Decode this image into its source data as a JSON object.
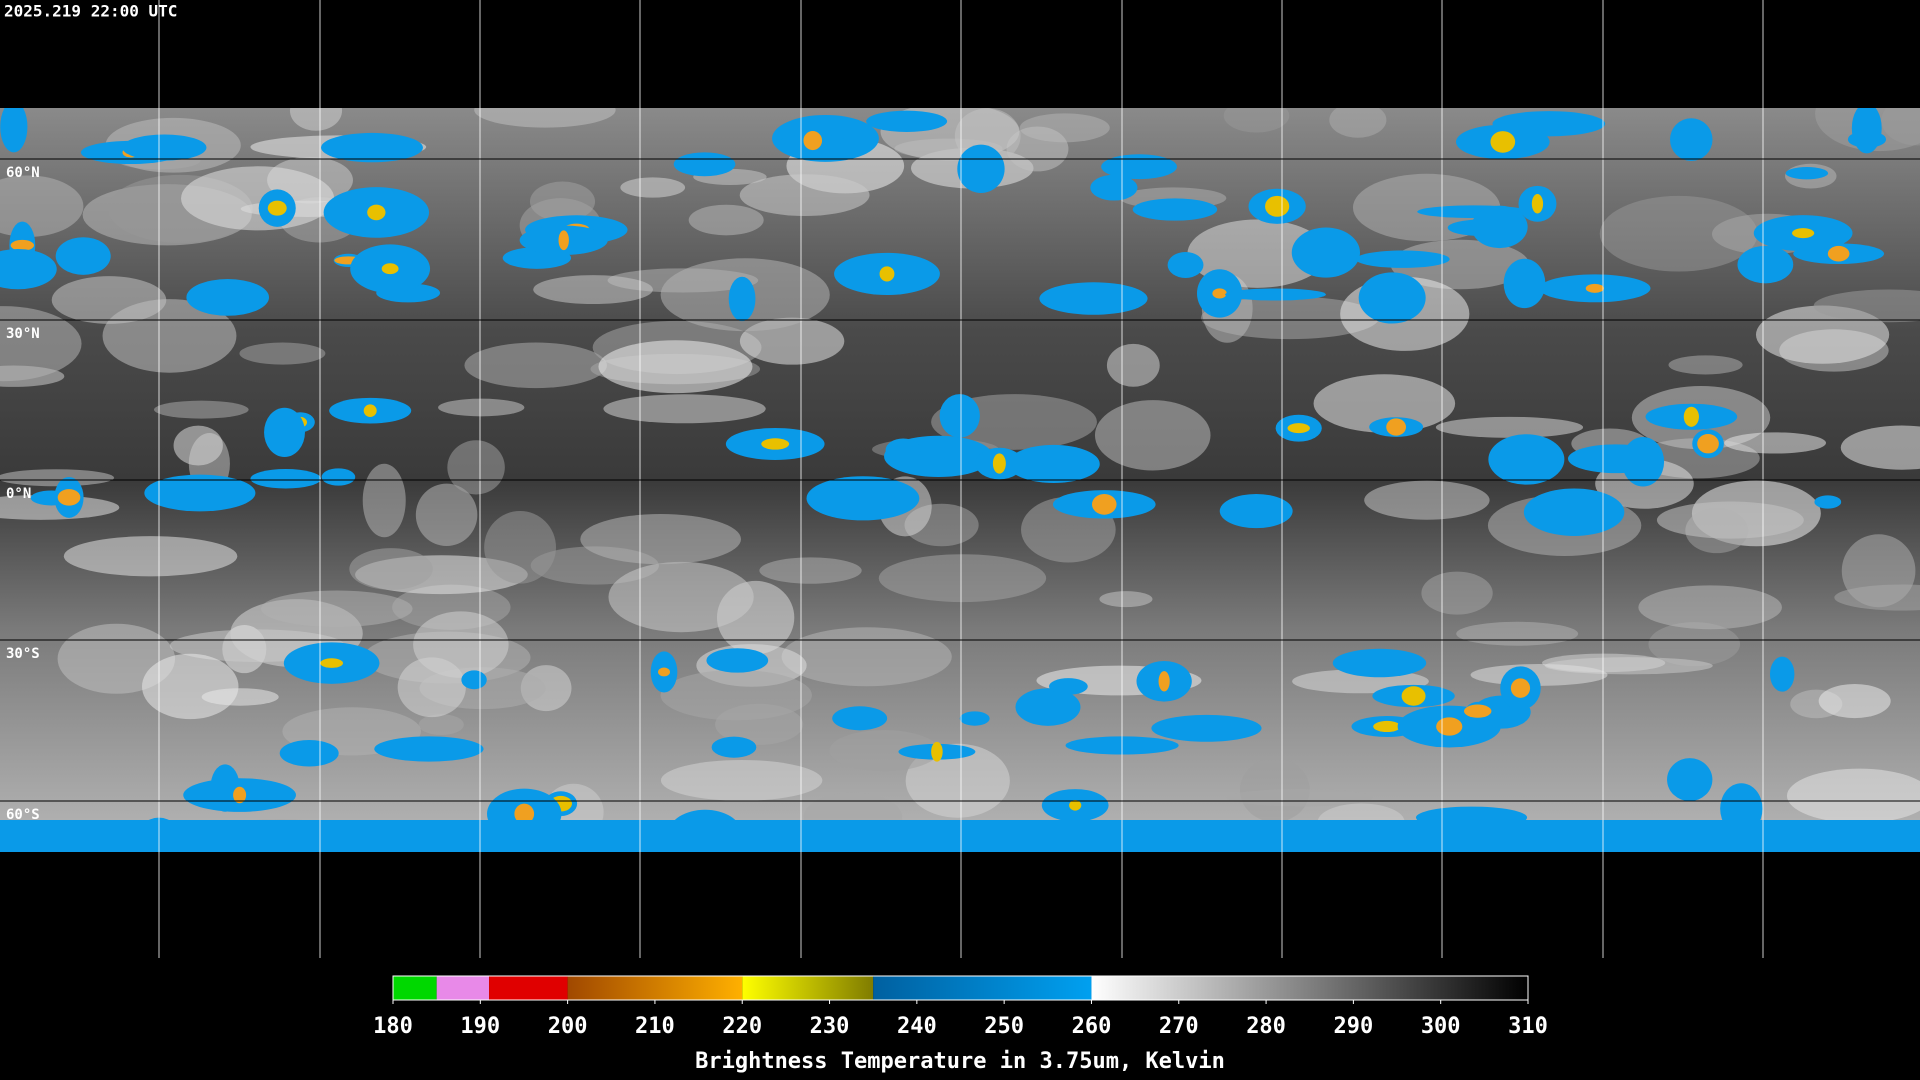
{
  "header": {
    "timestamp": "2025.219 22:00 UTC"
  },
  "map": {
    "latitude_labels": [
      "60°N",
      "30°N",
      "0°N",
      "30°S",
      "60°S"
    ]
  },
  "colorbar": {
    "title": "Brightness Temperature in 3.75um, Kelvin",
    "lim": [
      180,
      310
    ],
    "ticks": [
      180,
      190,
      200,
      210,
      220,
      230,
      240,
      250,
      260,
      270,
      280,
      290,
      300,
      310
    ],
    "segments": [
      {
        "from": 180,
        "to": 185,
        "colors": [
          "#00d800",
          "#00d800"
        ]
      },
      {
        "from": 185,
        "to": 191,
        "colors": [
          "#e889e8",
          "#e889e8"
        ]
      },
      {
        "from": 191,
        "to": 200,
        "colors": [
          "#e00000",
          "#e00000"
        ]
      },
      {
        "from": 200,
        "to": 220,
        "colors": [
          "#a04800",
          "#ffb000"
        ]
      },
      {
        "from": 220,
        "to": 235,
        "colors": [
          "#ffff00",
          "#807c00"
        ]
      },
      {
        "from": 235,
        "to": 260,
        "colors": [
          "#0060a0",
          "#00a0f0"
        ]
      },
      {
        "from": 260,
        "to": 310,
        "colors": [
          "#ffffff",
          "#000000"
        ]
      }
    ]
  }
}
